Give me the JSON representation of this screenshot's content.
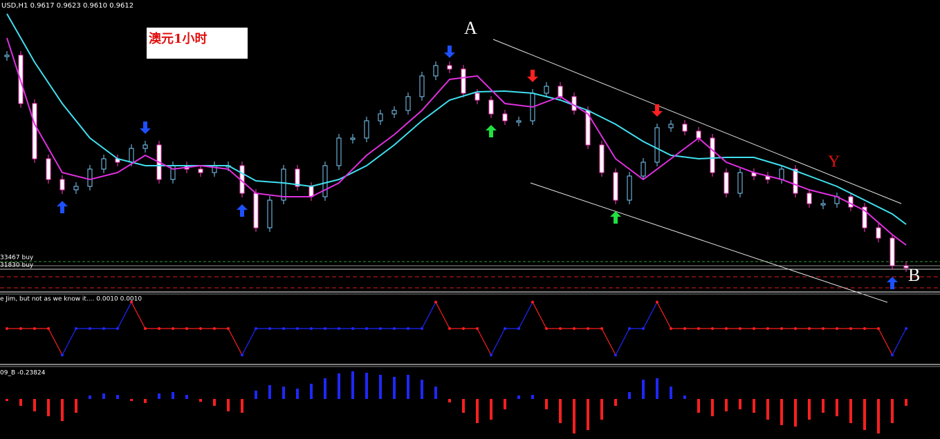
{
  "header": {
    "symbol_info": "USD,H1  0.9617 0.9623 0.9610 0.9612",
    "note": "澳元1小时"
  },
  "annotations": {
    "point_a": "A",
    "point_b": "B",
    "point_y": "Y"
  },
  "orders": [
    "33467 buy",
    "31830 buy"
  ],
  "chart_data": [
    {
      "type": "candlestick",
      "ylim": [
        0.958,
        1.0
      ],
      "up_color": "#7fd0ff",
      "down_color": "#ff40c0",
      "values": [
        0.992,
        0.985,
        0.977,
        0.974,
        0.9725,
        0.973,
        0.9755,
        0.977,
        0.9765,
        0.9785,
        0.979,
        0.974,
        0.976,
        0.9755,
        0.975,
        0.976,
        0.976,
        0.972,
        0.967,
        0.971,
        0.9755,
        0.973,
        0.9715,
        0.976,
        0.98,
        0.98,
        0.9825,
        0.9835,
        0.984,
        0.986,
        0.989,
        0.9905,
        0.99,
        0.9865,
        0.9855,
        0.9835,
        0.9825,
        0.9825,
        0.9865,
        0.9875,
        0.986,
        0.984,
        0.979,
        0.975,
        0.971,
        0.9745,
        0.9765,
        0.9815,
        0.982,
        0.981,
        0.98,
        0.975,
        0.972,
        0.975,
        0.9745,
        0.974,
        0.9755,
        0.972,
        0.9705,
        0.9705,
        0.9715,
        0.97,
        0.967,
        0.9655,
        0.9615,
        0.9612
      ],
      "lines": [
        {
          "color": "#40e0f0",
          "x": [
            0,
            2,
            4,
            6,
            8,
            10,
            12,
            14,
            16,
            18,
            20,
            22,
            24,
            26,
            28,
            30,
            32,
            34,
            36,
            38,
            40,
            42,
            44,
            46,
            48,
            50,
            52,
            54,
            56,
            58,
            60,
            62,
            64,
            65
          ],
          "values": [
            0.998,
            0.991,
            0.985,
            0.98,
            0.977,
            0.976,
            0.976,
            0.976,
            0.976,
            0.9738,
            0.9735,
            0.973,
            0.974,
            0.976,
            0.979,
            0.9825,
            0.9855,
            0.9867,
            0.9868,
            0.9865,
            0.9855,
            0.984,
            0.982,
            0.9795,
            0.9775,
            0.977,
            0.9772,
            0.9772,
            0.976,
            0.9745,
            0.973,
            0.971,
            0.969,
            0.9675
          ]
        },
        {
          "color": "#e030e0",
          "x": [
            0,
            2,
            4,
            6,
            8,
            10,
            12,
            14,
            16,
            18,
            20,
            22,
            24,
            26,
            28,
            30,
            32,
            34,
            36,
            38,
            40,
            42,
            44,
            46,
            48,
            50,
            52,
            54,
            56,
            58,
            60,
            62,
            64,
            65
          ],
          "values": [
            0.9945,
            0.982,
            0.975,
            0.974,
            0.975,
            0.9775,
            0.9755,
            0.976,
            0.9755,
            0.972,
            0.9715,
            0.9715,
            0.9735,
            0.9775,
            0.9805,
            0.984,
            0.9885,
            0.989,
            0.985,
            0.9845,
            0.986,
            0.9835,
            0.977,
            0.974,
            0.977,
            0.98,
            0.9765,
            0.975,
            0.974,
            0.9725,
            0.9715,
            0.9695,
            0.966,
            0.9645
          ]
        }
      ],
      "signals": [
        {
          "index": 4,
          "direction": "up",
          "color": "#1e50ff"
        },
        {
          "index": 10,
          "direction": "down",
          "color": "#1e50ff"
        },
        {
          "index": 17,
          "direction": "up",
          "color": "#1e50ff"
        },
        {
          "index": 32,
          "direction": "down",
          "color": "#1e50ff"
        },
        {
          "index": 35,
          "direction": "up",
          "color": "#20e040"
        },
        {
          "index": 38,
          "direction": "down",
          "color": "#ff2020"
        },
        {
          "index": 44,
          "direction": "up",
          "color": "#20e040"
        },
        {
          "index": 47,
          "direction": "down",
          "color": "#ff2020"
        },
        {
          "index": 64,
          "direction": "up",
          "color": "#1e50ff"
        }
      ]
    },
    {
      "type": "step",
      "title": "e Jim, but not as we know it.... 0.0010 0.0010",
      "ylim": [
        -1.2,
        1.2
      ],
      "up_color": "#1e28ff",
      "down_color": "#ff1e1e",
      "values": [
        0,
        0,
        0,
        0,
        -1,
        0,
        0,
        0,
        0,
        1,
        0,
        0,
        0,
        0,
        0,
        0,
        0,
        -1,
        0,
        0,
        0,
        0,
        0,
        0,
        0,
        0,
        0,
        0,
        0,
        0,
        0,
        1,
        0,
        0,
        0,
        -1,
        0,
        0,
        1,
        0,
        0,
        0,
        0,
        0,
        -1,
        0,
        0,
        1,
        0,
        0,
        0,
        0,
        0,
        0,
        0,
        0,
        0,
        0,
        0,
        0,
        0,
        0,
        0,
        0,
        -1,
        0
      ]
    },
    {
      "type": "bar",
      "title": "09_B -0.23824",
      "ylim": [
        -1.392,
        1.032
      ],
      "up_color": "#1e28ff",
      "down_color": "#ff2020",
      "values": [
        -0.07,
        -0.24,
        -0.43,
        -0.6,
        -0.77,
        -0.48,
        0.12,
        0.19,
        0.14,
        -0.07,
        -0.14,
        0.19,
        0.24,
        0.14,
        -0.1,
        -0.24,
        -0.43,
        -0.48,
        0.29,
        0.48,
        0.43,
        0.36,
        0.53,
        0.72,
        0.89,
        0.96,
        0.91,
        0.84,
        0.77,
        0.84,
        0.67,
        0.43,
        -0.12,
        -0.48,
        -0.84,
        -0.72,
        -0.36,
        0.12,
        0.14,
        -0.36,
        -0.84,
        -1.2,
        -1.08,
        -0.72,
        -0.24,
        0.24,
        0.67,
        0.72,
        0.43,
        0.12,
        -0.48,
        -0.6,
        -0.43,
        -0.36,
        -0.48,
        -0.72,
        -0.91,
        -0.96,
        -0.72,
        -0.48,
        -0.6,
        -0.84,
        -1.08,
        -1.2,
        -0.84,
        -0.23824
      ]
    }
  ]
}
